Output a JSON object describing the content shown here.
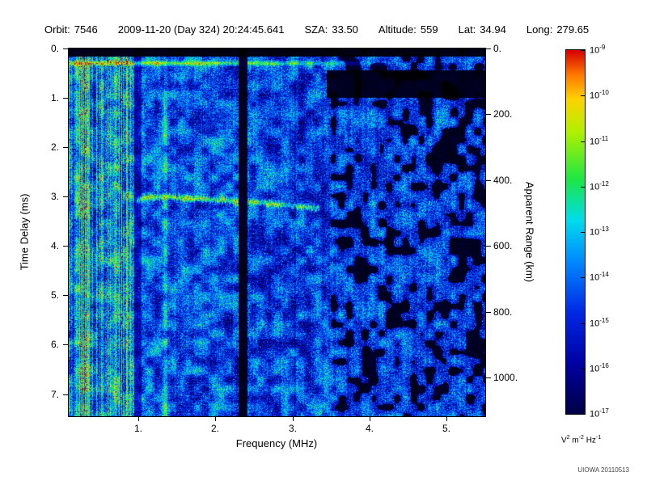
{
  "header": {
    "segments": [
      {
        "label": "Orbit:",
        "value": "7546"
      },
      {
        "label": "",
        "value": "2009-11-20 (Day 324) 20:24:45.641"
      },
      {
        "label": "SZA:",
        "value": "33.50"
      },
      {
        "label": "Altitude:",
        "value": "559"
      },
      {
        "label": "Lat:",
        "value": "34.94"
      },
      {
        "label": "Long:",
        "value": "279.65"
      }
    ]
  },
  "footer": {
    "credit": "UIOWA 20110513"
  },
  "chart_data": {
    "type": "heatmap",
    "subtype": "radar-sounder-ionogram-spectrogram",
    "x_axis": {
      "label": "Frequency (MHz)",
      "min": 0.1,
      "max": 5.5,
      "ticks": [
        1,
        2,
        3,
        4,
        5
      ],
      "tick_labels": [
        "1.",
        "2.",
        "3.",
        "4.",
        "5."
      ]
    },
    "y_axis_left": {
      "label": "Time Delay (ms)",
      "min": 0,
      "max": 7.45,
      "direction": "down",
      "ticks": [
        0,
        1,
        2,
        3,
        4,
        5,
        6,
        7
      ],
      "tick_labels": [
        "0.",
        "1.",
        "2.",
        "3.",
        "4.",
        "5.",
        "6.",
        "7."
      ]
    },
    "y_axis_right": {
      "label": "Apparent Range (km)",
      "km_per_ms": 150,
      "ticks": [
        0,
        200,
        400,
        600,
        800,
        1000
      ],
      "tick_labels": [
        "0.",
        "200.",
        "400.",
        "600.",
        "800.",
        "1000."
      ]
    },
    "colorbar": {
      "scale": "log",
      "base": "10",
      "exponents": [
        -9,
        -10,
        -11,
        -12,
        -13,
        -14,
        -15,
        -16,
        -17
      ],
      "unit_parts": [
        {
          "text": "V",
          "sup": "2"
        },
        {
          "text": " m",
          "sup": "-2"
        },
        {
          "text": " Hz",
          "sup": "-1"
        }
      ]
    },
    "colormap_stops": [
      {
        "v": 0.0,
        "c": [
          0,
          0,
          0
        ]
      },
      {
        "v": 0.1,
        "c": [
          0,
          0,
          70
        ]
      },
      {
        "v": 0.22,
        "c": [
          0,
          0,
          160
        ]
      },
      {
        "v": 0.35,
        "c": [
          0,
          40,
          230
        ]
      },
      {
        "v": 0.48,
        "c": [
          0,
          140,
          255
        ]
      },
      {
        "v": 0.58,
        "c": [
          0,
          220,
          235
        ]
      },
      {
        "v": 0.68,
        "c": [
          30,
          230,
          70
        ]
      },
      {
        "v": 0.8,
        "c": [
          180,
          240,
          0
        ]
      },
      {
        "v": 0.88,
        "c": [
          255,
          210,
          0
        ]
      },
      {
        "v": 0.94,
        "c": [
          255,
          120,
          0
        ]
      },
      {
        "v": 1.0,
        "c": [
          215,
          0,
          0
        ]
      }
    ],
    "features": {
      "noise_seed": 20110513,
      "background_level": 0.4,
      "background_slope_per_mhz": -0.022,
      "interference_striations_max_mhz": 0.95,
      "vertical_line_mhz": 1.35,
      "attenuation_band_mhz": [
        2.3,
        2.42
      ],
      "transmit_pulse_delay_ms": 0.3,
      "ionospheric_echo_trace_points": [
        [
          0.98,
          3.08
        ],
        [
          1.15,
          3.0
        ],
        [
          1.45,
          3.02
        ],
        [
          1.8,
          3.05
        ],
        [
          2.2,
          3.08
        ],
        [
          2.6,
          3.12
        ],
        [
          3.0,
          3.18
        ],
        [
          3.35,
          3.24
        ]
      ],
      "black_corner_top_right": {
        "freq_min_mhz": 3.45,
        "delay_range_ms": [
          0.45,
          1.0
        ]
      }
    }
  }
}
